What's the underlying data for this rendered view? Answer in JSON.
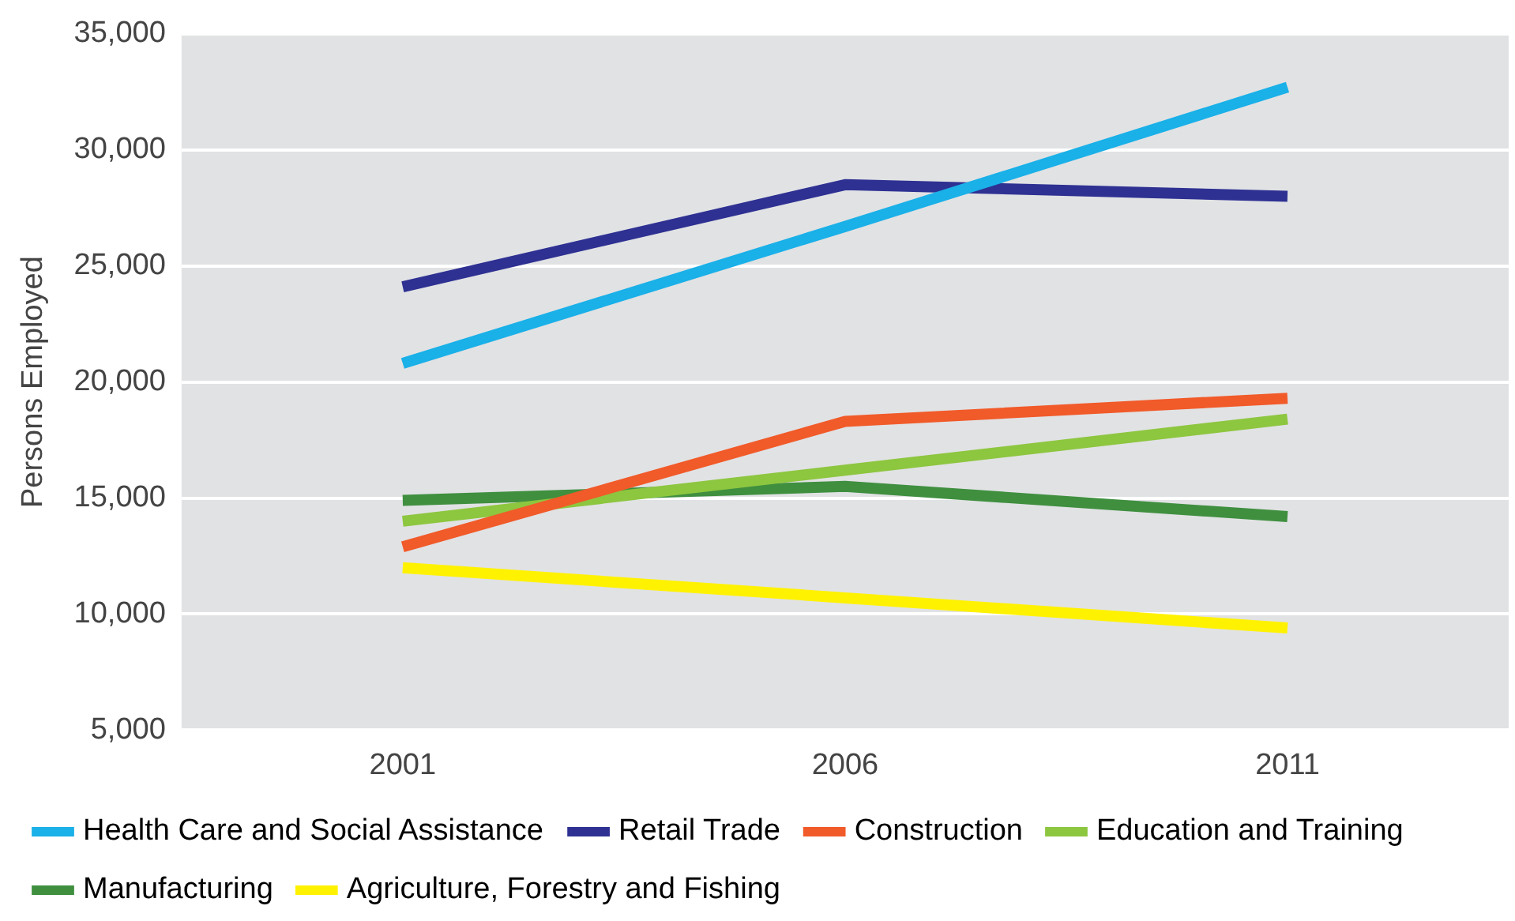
{
  "chart_data": {
    "type": "line",
    "ylabel": "Persons Employed",
    "categories": [
      "2001",
      "2006",
      "2011"
    ],
    "series": [
      {
        "name": "Health Care and Social Assistance",
        "color": "#1ab0e8",
        "values": [
          20800,
          26700,
          32700
        ]
      },
      {
        "name": "Retail Trade",
        "color": "#2e3192",
        "values": [
          24100,
          28500,
          28000
        ]
      },
      {
        "name": "Construction",
        "color": "#f15a29",
        "values": [
          12900,
          18300,
          19300
        ]
      },
      {
        "name": "Education and Training",
        "color": "#8dc63f",
        "values": [
          14000,
          16200,
          18400
        ]
      },
      {
        "name": "Manufacturing",
        "color": "#3f8f3f",
        "values": [
          14900,
          15500,
          14200
        ]
      },
      {
        "name": "Agriculture, Forestry and Fishing",
        "color": "#fff200",
        "values": [
          12000,
          10700,
          9400
        ]
      }
    ],
    "ylim": [
      5000,
      35000
    ],
    "yticks": [
      {
        "value": 5000,
        "label": "5,000"
      },
      {
        "value": 10000,
        "label": "10,000"
      },
      {
        "value": 15000,
        "label": "15,000"
      },
      {
        "value": 20000,
        "label": "20,000"
      },
      {
        "value": 25000,
        "label": "25,000"
      },
      {
        "value": 30000,
        "label": "30,000"
      },
      {
        "value": 35000,
        "label": "35,000"
      }
    ],
    "grid": "y",
    "legend": "bottom",
    "marker": "none",
    "line_style": "solid"
  }
}
